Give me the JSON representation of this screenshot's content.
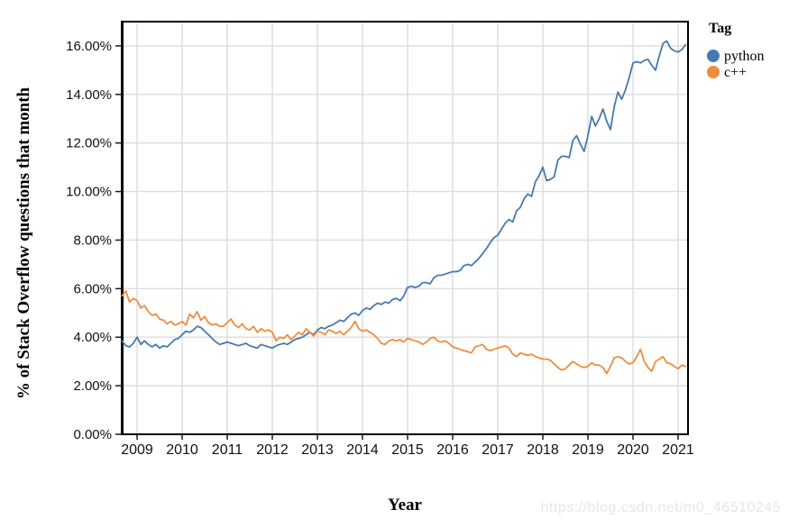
{
  "watermark": "https://blog.csdn.net/m0_46510245",
  "chart_data": {
    "type": "line",
    "title": "",
    "x_label": "Year",
    "y_label": "% of Stack Overflow questions that month",
    "legend_title": "Tag",
    "legend_position": "top-right-outside",
    "grid": true,
    "x_domain": [
      2008.66,
      2021.22
    ],
    "y_domain": [
      0,
      17
    ],
    "x_start": 2008.6667,
    "x_step": 0.083333,
    "x_unit": "decimal-year, monthly samples Sep 2008 - Mar 2021",
    "x_ticks": [
      {
        "value": 2009,
        "label": "2009"
      },
      {
        "value": 2010,
        "label": "2010"
      },
      {
        "value": 2011,
        "label": "2011"
      },
      {
        "value": 2012,
        "label": "2012"
      },
      {
        "value": 2013,
        "label": "2013"
      },
      {
        "value": 2014,
        "label": "2014"
      },
      {
        "value": 2015,
        "label": "2015"
      },
      {
        "value": 2016,
        "label": "2016"
      },
      {
        "value": 2017,
        "label": "2017"
      },
      {
        "value": 2018,
        "label": "2018"
      },
      {
        "value": 2019,
        "label": "2019"
      },
      {
        "value": 2020,
        "label": "2020"
      },
      {
        "value": 2021,
        "label": "2021"
      }
    ],
    "y_ticks": [
      {
        "value": 0,
        "label": "0.00%"
      },
      {
        "value": 2,
        "label": "2.00%"
      },
      {
        "value": 4,
        "label": "4.00%"
      },
      {
        "value": 6,
        "label": "6.00%"
      },
      {
        "value": 8,
        "label": "8.00%"
      },
      {
        "value": 10,
        "label": "10.00%"
      },
      {
        "value": 12,
        "label": "12.00%"
      },
      {
        "value": 14,
        "label": "14.00%"
      },
      {
        "value": 16,
        "label": "16.00%"
      }
    ],
    "series": [
      {
        "name": "python",
        "color": "#4779b1",
        "values": [
          3.85,
          3.65,
          3.6,
          3.75,
          4.0,
          3.7,
          3.85,
          3.7,
          3.6,
          3.7,
          3.55,
          3.65,
          3.6,
          3.75,
          3.9,
          3.95,
          4.1,
          4.25,
          4.2,
          4.3,
          4.45,
          4.4,
          4.25,
          4.1,
          3.95,
          3.8,
          3.7,
          3.75,
          3.8,
          3.75,
          3.7,
          3.65,
          3.7,
          3.75,
          3.65,
          3.6,
          3.55,
          3.7,
          3.65,
          3.6,
          3.55,
          3.65,
          3.7,
          3.75,
          3.7,
          3.8,
          3.9,
          3.95,
          4.0,
          4.1,
          4.2,
          4.1,
          4.3,
          4.4,
          4.35,
          4.45,
          4.5,
          4.6,
          4.7,
          4.65,
          4.8,
          4.95,
          5.0,
          4.9,
          5.1,
          5.2,
          5.15,
          5.3,
          5.4,
          5.35,
          5.45,
          5.4,
          5.55,
          5.6,
          5.5,
          5.7,
          6.05,
          6.1,
          6.05,
          6.1,
          6.25,
          6.25,
          6.2,
          6.45,
          6.55,
          6.55,
          6.6,
          6.65,
          6.7,
          6.7,
          6.75,
          6.95,
          7.0,
          6.95,
          7.1,
          7.25,
          7.45,
          7.65,
          7.9,
          8.1,
          8.2,
          8.45,
          8.7,
          8.85,
          8.75,
          9.2,
          9.35,
          9.7,
          9.9,
          9.8,
          10.4,
          10.65,
          11.0,
          10.45,
          10.5,
          10.6,
          11.3,
          11.45,
          11.45,
          11.4,
          12.1,
          12.3,
          11.95,
          11.65,
          12.3,
          13.1,
          12.7,
          13.0,
          13.4,
          12.9,
          12.55,
          13.5,
          14.1,
          13.8,
          14.2,
          14.7,
          15.3,
          15.35,
          15.3,
          15.4,
          15.45,
          15.2,
          15.0,
          15.6,
          16.1,
          16.2,
          15.9,
          15.8,
          15.75,
          15.85,
          16.05
        ]
      },
      {
        "name": "c++",
        "color": "#ef8d3d",
        "values": [
          5.7,
          5.9,
          5.45,
          5.6,
          5.5,
          5.2,
          5.3,
          5.05,
          4.9,
          4.95,
          4.75,
          4.7,
          4.55,
          4.65,
          4.5,
          4.55,
          4.65,
          4.5,
          4.95,
          4.8,
          5.05,
          4.7,
          4.85,
          4.6,
          4.5,
          4.55,
          4.45,
          4.45,
          4.6,
          4.75,
          4.5,
          4.4,
          4.55,
          4.35,
          4.3,
          4.45,
          4.2,
          4.35,
          4.25,
          4.3,
          4.2,
          3.85,
          4.0,
          3.95,
          4.1,
          3.9,
          4.05,
          4.2,
          4.1,
          4.35,
          4.2,
          4.05,
          4.25,
          4.2,
          4.1,
          4.3,
          4.25,
          4.15,
          4.25,
          4.1,
          4.25,
          4.4,
          4.65,
          4.35,
          4.25,
          4.3,
          4.2,
          4.1,
          3.95,
          3.75,
          3.7,
          3.85,
          3.9,
          3.85,
          3.9,
          3.8,
          3.95,
          3.9,
          3.85,
          3.8,
          3.7,
          3.8,
          3.95,
          4.0,
          3.85,
          3.8,
          3.85,
          3.75,
          3.6,
          3.55,
          3.5,
          3.45,
          3.4,
          3.35,
          3.6,
          3.65,
          3.7,
          3.5,
          3.45,
          3.5,
          3.55,
          3.6,
          3.65,
          3.55,
          3.3,
          3.2,
          3.35,
          3.3,
          3.25,
          3.3,
          3.2,
          3.15,
          3.1,
          3.1,
          3.05,
          2.9,
          2.75,
          2.65,
          2.7,
          2.85,
          3.0,
          2.9,
          2.8,
          2.75,
          2.8,
          2.95,
          2.85,
          2.85,
          2.75,
          2.5,
          2.8,
          3.15,
          3.2,
          3.15,
          3.0,
          2.9,
          2.95,
          3.2,
          3.5,
          3.0,
          2.75,
          2.6,
          3.0,
          3.1,
          3.2,
          2.95,
          2.9,
          2.8,
          2.7,
          2.85,
          2.8
        ]
      }
    ]
  }
}
